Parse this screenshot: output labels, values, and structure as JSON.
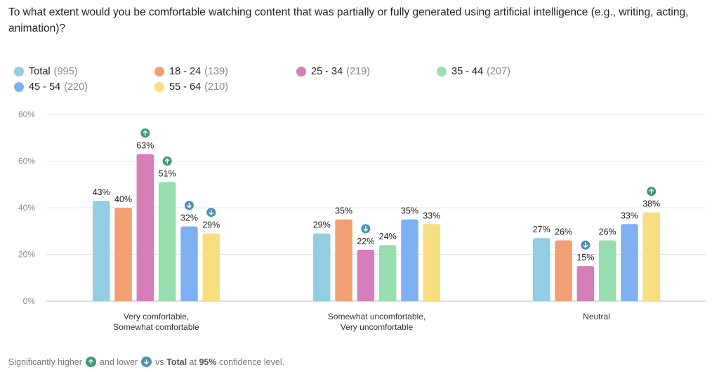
{
  "title": "To what extent would you be comfortable watching content that was partially or fully generated using artificial intelligence (e.g., writing, acting, animation)?",
  "legend": [
    {
      "name": "Total",
      "count": "(995)",
      "color": "#93cde3"
    },
    {
      "name": "18 - 24",
      "count": "(139)",
      "color": "#f2a073"
    },
    {
      "name": "25 - 34",
      "count": "(219)",
      "color": "#d57eb8"
    },
    {
      "name": "35 - 44",
      "count": "(207)",
      "color": "#98ddb0"
    },
    {
      "name": "45 - 54",
      "count": "(220)",
      "color": "#7fb0f2"
    },
    {
      "name": "55 - 64",
      "count": "(210)",
      "color": "#f7de7e"
    }
  ],
  "significance_colors": {
    "higher": "#3f9a6e",
    "lower": "#4a8fb3"
  },
  "footer": {
    "prefix": "Significantly higher",
    "middle": "and lower",
    "vs": "vs",
    "total": "Total",
    "at": "at",
    "confidence": "95%",
    "suffix": "confidence level."
  },
  "chart_data": {
    "type": "bar",
    "title": "To what extent would you be comfortable watching content that was partially or fully generated using artificial intelligence (e.g., writing, acting, animation)?",
    "xlabel": "",
    "ylabel": "",
    "ylim": [
      0,
      80
    ],
    "yticks": [
      0,
      20,
      40,
      60,
      80
    ],
    "ytick_labels": [
      "0%",
      "20%",
      "40%",
      "60%",
      "80%"
    ],
    "grid": true,
    "legend_position": "top-left",
    "categories": [
      [
        "Very comfortable,",
        "Somewhat comfortable"
      ],
      [
        "Somewhat uncomfortable,",
        "Very uncomfortable"
      ],
      [
        "Neutral"
      ]
    ],
    "series": [
      {
        "name": "Total (995)",
        "values": [
          43,
          29,
          27
        ],
        "labels": [
          "43%",
          "29%",
          "27%"
        ],
        "significance": [
          null,
          null,
          null
        ]
      },
      {
        "name": "18 - 24 (139)",
        "values": [
          40,
          35,
          26
        ],
        "labels": [
          "40%",
          "35%",
          "26%"
        ],
        "significance": [
          null,
          null,
          null
        ]
      },
      {
        "name": "25 - 34 (219)",
        "values": [
          63,
          22,
          15
        ],
        "labels": [
          "63%",
          "22%",
          "15%"
        ],
        "significance": [
          "higher",
          "lower",
          "lower"
        ]
      },
      {
        "name": "35 - 44 (207)",
        "values": [
          51,
          24,
          26
        ],
        "labels": [
          "51%",
          "24%",
          "26%"
        ],
        "significance": [
          "higher",
          null,
          null
        ]
      },
      {
        "name": "45 - 54 (220)",
        "values": [
          32,
          35,
          33
        ],
        "labels": [
          "32%",
          "35%",
          "33%"
        ],
        "significance": [
          "lower",
          null,
          null
        ]
      },
      {
        "name": "55 - 64 (210)",
        "values": [
          29,
          33,
          38
        ],
        "labels": [
          "29%",
          "33%",
          "38%"
        ],
        "significance": [
          "lower",
          null,
          "higher"
        ]
      }
    ]
  }
}
